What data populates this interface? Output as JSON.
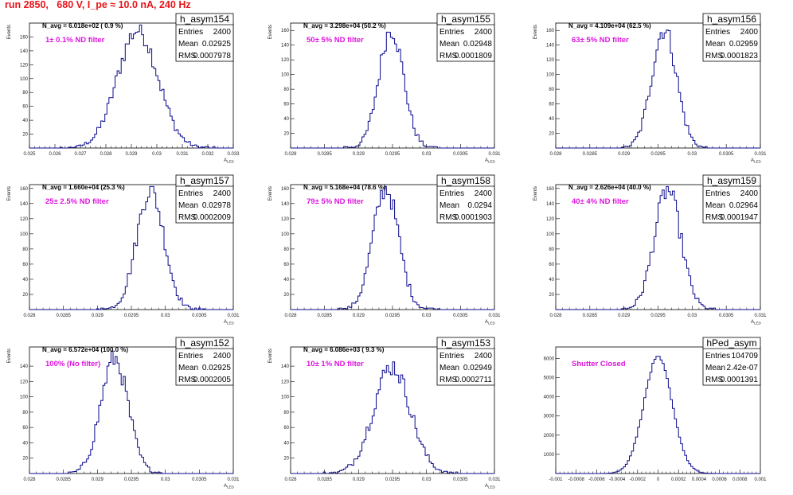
{
  "header": {
    "run_title": "run 2850,   680 V, I_pe ≈ 10.0 nA, 240 Hz"
  },
  "colors": {
    "histogram": "#0a0a8c",
    "title": "#e8141a",
    "filter_label": "#dd14dd"
  },
  "chart_data": [
    {
      "type": "bar",
      "name": "h_asym154",
      "navg": "N_avg = 6.018e+02 ( 0.9 %)",
      "filter": "1± 0.1% ND filter",
      "xlim": [
        0.025,
        0.033
      ],
      "xticks": [
        "0.025",
        "0.026",
        "0.027",
        "0.028",
        "0.029",
        "0.03",
        "0.031",
        "0.032",
        "0.033"
      ],
      "ylim": [
        0,
        180
      ],
      "yticks": [
        "20",
        "40",
        "60",
        "80",
        "100",
        "120",
        "140",
        "160"
      ],
      "mean": 0.02925,
      "rms": 0.0007978,
      "peak": 170,
      "stats": {
        "Entries": "2400",
        "Mean": "0.02925",
        "RMS": "0.0007978"
      },
      "xlabel": "A_{LED}",
      "ylabel": "Events"
    },
    {
      "type": "bar",
      "name": "h_asym155",
      "navg": "N_avg = 3.298e+04 (50.2 %)",
      "filter": "50± 5% ND filter",
      "xlim": [
        0.028,
        0.031
      ],
      "xticks": [
        "0.028",
        "0.0285",
        "0.029",
        "0.0295",
        "0.03",
        "0.0305",
        "0.031"
      ],
      "ylim": [
        0,
        170
      ],
      "yticks": [
        "20",
        "40",
        "60",
        "80",
        "100",
        "120",
        "140",
        "160"
      ],
      "mean": 0.02948,
      "rms": 0.0001809,
      "peak": 162,
      "stats": {
        "Entries": "2400",
        "Mean": "0.02948",
        "RMS": "0.0001809"
      },
      "xlabel": "A_{LED}",
      "ylabel": "Events"
    },
    {
      "type": "bar",
      "name": "h_asym156",
      "navg": "N_avg = 4.109e+04 (62.5 %)",
      "filter": "63± 5% ND filter",
      "xlim": [
        0.028,
        0.031
      ],
      "xticks": [
        "0.028",
        "0.0285",
        "0.029",
        "0.0295",
        "0.03",
        "0.0305",
        "0.031"
      ],
      "ylim": [
        0,
        170
      ],
      "yticks": [
        "20",
        "40",
        "60",
        "80",
        "100",
        "120",
        "140",
        "160"
      ],
      "mean": 0.02959,
      "rms": 0.0001823,
      "peak": 162,
      "stats": {
        "Entries": "2400",
        "Mean": "0.02959",
        "RMS": "0.0001823"
      },
      "xlabel": "A_{LED}",
      "ylabel": "Events"
    },
    {
      "type": "bar",
      "name": "h_asym157",
      "navg": "N_avg = 1.660e+04 (25.3 %)",
      "filter": "25± 2.5% ND filter",
      "xlim": [
        0.028,
        0.031
      ],
      "xticks": [
        "0.028",
        "0.0285",
        "0.029",
        "0.0295",
        "0.03",
        "0.0305",
        "0.031"
      ],
      "ylim": [
        0,
        165
      ],
      "yticks": [
        "20",
        "40",
        "60",
        "80",
        "100",
        "120",
        "140",
        "160"
      ],
      "mean": 0.02978,
      "rms": 0.0002009,
      "peak": 158,
      "stats": {
        "Entries": "2400",
        "Mean": "0.02978",
        "RMS": "0.0002009"
      },
      "xlabel": "A_{LED}",
      "ylabel": "Events"
    },
    {
      "type": "bar",
      "name": "h_asym158",
      "navg": "N_avg = 5.168e+04 (78.6 %)",
      "filter": "79± 5% ND filter",
      "xlim": [
        0.028,
        0.031
      ],
      "xticks": [
        "0.028",
        "0.0285",
        "0.029",
        "0.0295",
        "0.03",
        "0.0305",
        "0.031"
      ],
      "ylim": [
        0,
        165
      ],
      "yticks": [
        "20",
        "40",
        "60",
        "80",
        "100",
        "120",
        "140",
        "160"
      ],
      "mean": 0.0294,
      "rms": 0.0001903,
      "peak": 160,
      "stats": {
        "Entries": "2400",
        "Mean": "0.0294",
        "RMS": "0.0001903"
      },
      "xlabel": "A_{LED}",
      "ylabel": "Events"
    },
    {
      "type": "bar",
      "name": "h_asym159",
      "navg": "N_avg = 2.626e+04 (40.0 %)",
      "filter": "40± 4% ND filter",
      "xlim": [
        0.028,
        0.031
      ],
      "xticks": [
        "0.028",
        "0.0285",
        "0.029",
        "0.0295",
        "0.03",
        "0.0305",
        "0.031"
      ],
      "ylim": [
        0,
        165
      ],
      "yticks": [
        "20",
        "40",
        "60",
        "80",
        "100",
        "120",
        "140",
        "160"
      ],
      "mean": 0.02964,
      "rms": 0.0001947,
      "peak": 158,
      "stats": {
        "Entries": "2400",
        "Mean": "0.02964",
        "RMS": "0.0001947"
      },
      "xlabel": "A_{LED}",
      "ylabel": "Events"
    },
    {
      "type": "bar",
      "name": "h_asym152",
      "navg": "N_avg = 6.572e+04 (100.0 %)",
      "filter": "100% (No filter)",
      "xlim": [
        0.028,
        0.031
      ],
      "xticks": [
        "0.028",
        "0.0285",
        "0.029",
        "0.0295",
        "0.03",
        "0.0305",
        "0.031"
      ],
      "ylim": [
        0,
        165
      ],
      "yticks": [
        "20",
        "40",
        "60",
        "80",
        "100",
        "120",
        "140"
      ],
      "mean": 0.02925,
      "rms": 0.0002005,
      "peak": 150,
      "stats": {
        "Entries": "2400",
        "Mean": "0.02925",
        "RMS": "0.0002005"
      },
      "xlabel": "A_{LED}",
      "ylabel": "Events"
    },
    {
      "type": "bar",
      "name": "h_asym153",
      "navg": "N_avg = 6.086e+03 ( 9.3 %)",
      "filter": "10± 1% ND filter",
      "xlim": [
        0.028,
        0.031
      ],
      "xticks": [
        "0.028",
        "0.0285",
        "0.029",
        "0.0295",
        "0.03",
        "0.0305",
        "0.031"
      ],
      "ylim": [
        0,
        165
      ],
      "yticks": [
        "20",
        "40",
        "60",
        "80",
        "100",
        "120",
        "140"
      ],
      "mean": 0.02949,
      "rms": 0.0002711,
      "peak": 140,
      "stats": {
        "Entries": "2400",
        "Mean": "0.02949",
        "RMS": "0.0002711"
      },
      "xlabel": "A_{LED}",
      "ylabel": "Events"
    },
    {
      "type": "bar",
      "name": "hPed_asym",
      "navg": "",
      "filter": "Shutter Closed",
      "xlim": [
        -0.001,
        0.001
      ],
      "xticks": [
        "-0.001",
        "-0.0008",
        "-0.0006",
        "-0.0004",
        "-0.0002",
        "0",
        "0.0002",
        "0.0004",
        "0.0006",
        "0.0008",
        "0.001"
      ],
      "ylim": [
        0,
        6600
      ],
      "yticks": [
        "1000",
        "2000",
        "3000",
        "4000",
        "5000",
        "6000"
      ],
      "mean": 2.42e-07,
      "rms": 0.0001391,
      "peak": 6050,
      "stats": {
        "Entries": "104709",
        "Mean": "2.42e-07",
        "RMS": "0.0001391"
      },
      "xlabel": "",
      "ylabel": ""
    }
  ]
}
